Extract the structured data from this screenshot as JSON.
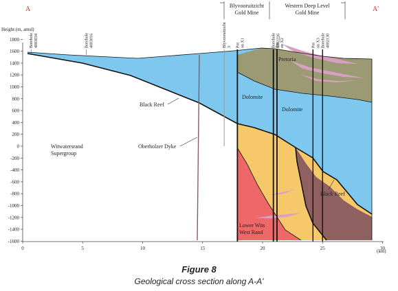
{
  "section": {
    "label_left": "A",
    "label_right": "A'",
    "mine_1": [
      "Blyvooruitzicht",
      "Gold Mine"
    ],
    "mine_2": [
      "Western Deep Level",
      "Gold Mine"
    ]
  },
  "axes": {
    "ylabel": "Height (m, amsl)",
    "xunit": "(km)",
    "yticks": [
      1800,
      1600,
      1400,
      1200,
      1000,
      800,
      600,
      400,
      200,
      0,
      -200,
      -400,
      -600,
      -800,
      -1000,
      -1200,
      -1400,
      -1600
    ],
    "xticks": [
      0,
      5,
      10,
      15,
      20,
      25,
      30
    ]
  },
  "boreholes": [
    {
      "label": "Borehole 4003034",
      "x_km": 0.7
    },
    {
      "label": "Borehole 4003016",
      "x_km": 5.3
    },
    {
      "label": "Blyvooruitzicht 3",
      "x_km": 16.8
    },
    {
      "label": "Pot on X1",
      "x_km": 17.9
    },
    {
      "label": "Borehole 4002226",
      "x_km": 20.9
    },
    {
      "label": "Pot on X2",
      "x_km": 21.2
    },
    {
      "label": "Pot on X3",
      "x_km": 24.2
    },
    {
      "label": "Borehole 4002130",
      "x_km": 25.0
    }
  ],
  "units": {
    "pretoria": "Pretoria",
    "dolomite_1": "Dolomite",
    "dolomite_2": "Dolomite",
    "witwatersrand": [
      "Witwatersrand",
      "Supergroup"
    ],
    "lower_wits": [
      "Lower Wits",
      "West Rand"
    ],
    "black_reef_1": "Black Reef",
    "black_reef_2": "Black Reef",
    "oberholzer": "Oberholzer Dyke"
  },
  "colors": {
    "dolomite": "#7ec8f0",
    "pretoria": "#9c9a74",
    "yellow": "#f6c86a",
    "lower_wits": "#ef6868",
    "brown": "#8e6060",
    "dyke": "#8b5a5a",
    "vein": "#d8a0c0"
  },
  "figure": {
    "number": "Figure 8",
    "title": "Geological cross section along A-A'"
  }
}
